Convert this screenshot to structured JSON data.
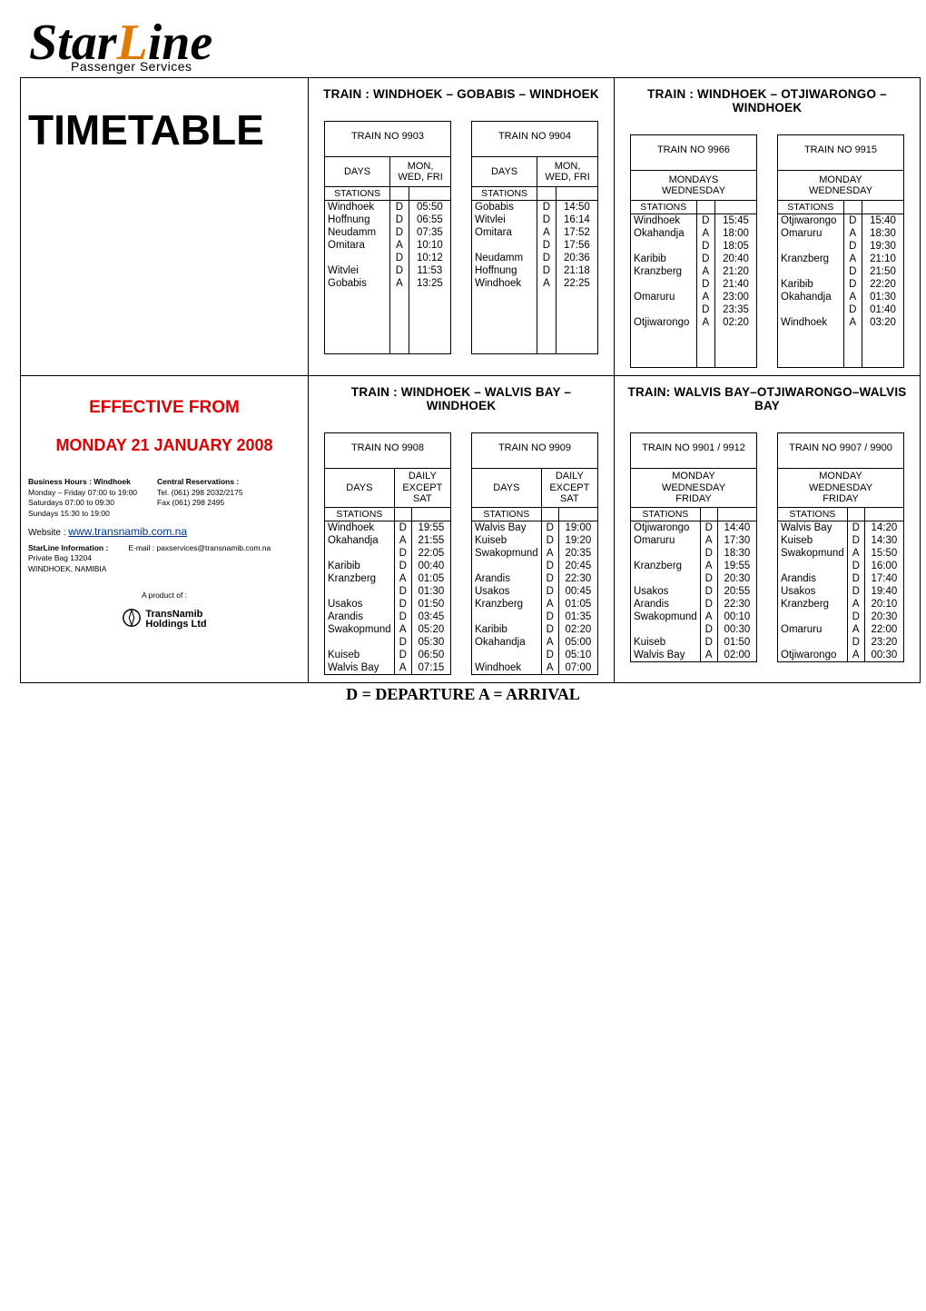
{
  "logo": {
    "word_star": "Star",
    "word_l": "L",
    "word_ine": "ine",
    "sub": "Passenger Services"
  },
  "timetable_heading": "TIMETABLE",
  "effective_label": "EFFECTIVE FROM",
  "effective_date": "MONDAY 21 JANUARY 2008",
  "contact": {
    "hours_title": "Business Hours : Windhoek",
    "hours_l1": "Monday – Friday   07:00 to 19:00",
    "hours_l2": "Saturdays          07:00 to 09:30",
    "hours_l3": "Sundays            15:30 to 19:00",
    "res_title": "Central Reservations :",
    "res_l1": "Tel. (061) 298 2032/2175",
    "res_l2": "Fax (061) 298 2495",
    "website_label": "Website :",
    "website_url": "www.transnamib.com.na",
    "info_title": "StarLine Information :",
    "info_addr1": "Private Bag 13204",
    "info_addr2": "WINDHOEK, NAMIBIA",
    "email_label": "E-mail : paxservices@transnamib.com.na",
    "product_of": "A product of :",
    "tn_line1": "TransNamib",
    "tn_line2": "Holdings Ltd"
  },
  "legend": "D = DEPARTURE    A = ARRIVAL",
  "routes": {
    "gobabis": {
      "title": "TRAIN :  WINDHOEK – GOBABIS – WINDHOEK",
      "t9903": {
        "train_no": "TRAIN NO 9903",
        "days_lbl": "DAYS",
        "days": "MON,\nWED, FRI",
        "stations_lbl": "STATIONS",
        "filler_rows": 5,
        "rows": [
          {
            "stn": "Windhoek",
            "da": "D",
            "tm": "05:50"
          },
          {
            "stn": "Hoffnung",
            "da": "D",
            "tm": "06:55"
          },
          {
            "stn": "Neudamm",
            "da": "D",
            "tm": "07:35"
          },
          {
            "stn": "Omitara",
            "da": "A",
            "tm": "10:10"
          },
          {
            "stn": "",
            "da": "D",
            "tm": "10:12"
          },
          {
            "stn": "Witvlei",
            "da": "D",
            "tm": "11:53"
          },
          {
            "stn": "Gobabis",
            "da": "A",
            "tm": "13:25"
          }
        ]
      },
      "t9904": {
        "train_no": "TRAIN NO 9904",
        "days_lbl": "DAYS",
        "days": "MON,\nWED, FRI",
        "stations_lbl": "STATIONS",
        "filler_rows": 5,
        "rows": [
          {
            "stn": "Gobabis",
            "da": "D",
            "tm": "14:50"
          },
          {
            "stn": "Witvlei",
            "da": "D",
            "tm": "16:14"
          },
          {
            "stn": "Omitara",
            "da": "A",
            "tm": "17:52"
          },
          {
            "stn": "",
            "da": "D",
            "tm": "17:56"
          },
          {
            "stn": "Neudamm",
            "da": "D",
            "tm": "20:36"
          },
          {
            "stn": "Hoffnung",
            "da": "D",
            "tm": "21:18"
          },
          {
            "stn": "Windhoek",
            "da": "A",
            "tm": "22:25"
          }
        ]
      }
    },
    "otji": {
      "title": "TRAIN : WINDHOEK – OTJIWARONGO – WINDHOEK",
      "t9966": {
        "train_no": "TRAIN NO 9966",
        "days_lbl": "MONDAYS\nWEDNESDAY",
        "days": "",
        "stations_lbl": "STATIONS",
        "filler_rows": 3,
        "rows": [
          {
            "stn": "Windhoek",
            "da": "D",
            "tm": "15:45"
          },
          {
            "stn": "Okahandja",
            "da": "A",
            "tm": "18:00"
          },
          {
            "stn": "",
            "da": "D",
            "tm": "18:05"
          },
          {
            "stn": "Karibib",
            "da": "D",
            "tm": "20:40"
          },
          {
            "stn": "Kranzberg",
            "da": "A",
            "tm": "21:20"
          },
          {
            "stn": "",
            "da": "D",
            "tm": "21:40"
          },
          {
            "stn": "Omaruru",
            "da": "A",
            "tm": "23:00"
          },
          {
            "stn": "",
            "da": "D",
            "tm": "23:35"
          },
          {
            "stn": "Otjiwarongo",
            "da": "A",
            "tm": "02:20"
          }
        ]
      },
      "t9915": {
        "train_no": "TRAIN NO 9915",
        "days_lbl": "MONDAY\nWEDNESDAY",
        "days": "",
        "stations_lbl": "STATIONS",
        "filler_rows": 3,
        "rows": [
          {
            "stn": "Otjiwarongo",
            "da": "D",
            "tm": "15:40"
          },
          {
            "stn": "Omaruru",
            "da": "A",
            "tm": "18:30"
          },
          {
            "stn": "",
            "da": "D",
            "tm": "19:30"
          },
          {
            "stn": "Kranzberg",
            "da": "A",
            "tm": "21:10"
          },
          {
            "stn": "",
            "da": "D",
            "tm": "21:50"
          },
          {
            "stn": "Karibib",
            "da": "D",
            "tm": "22:20"
          },
          {
            "stn": "Okahandja",
            "da": "A",
            "tm": "01:30"
          },
          {
            "stn": "",
            "da": "D",
            "tm": "01:40"
          },
          {
            "stn": "Windhoek",
            "da": "A",
            "tm": "03:20"
          }
        ]
      }
    },
    "walvis": {
      "title": "TRAIN :  WINDHOEK – WALVIS BAY – WINDHOEK",
      "t9908": {
        "train_no": "TRAIN NO 9908",
        "days_lbl": "DAYS",
        "days": "DAILY\nEXCEPT\nSAT",
        "stations_lbl": "STATIONS",
        "filler_rows": 0,
        "rows": [
          {
            "stn": "Windhoek",
            "da": "D",
            "tm": "19:55"
          },
          {
            "stn": "Okahandja",
            "da": "A",
            "tm": "21:55"
          },
          {
            "stn": "",
            "da": "D",
            "tm": "22:05"
          },
          {
            "stn": "Karibib",
            "da": "D",
            "tm": "00:40"
          },
          {
            "stn": "Kranzberg",
            "da": "A",
            "tm": "01:05"
          },
          {
            "stn": "",
            "da": "D",
            "tm": "01:30"
          },
          {
            "stn": "Usakos",
            "da": "D",
            "tm": "01:50"
          },
          {
            "stn": "Arandis",
            "da": "D",
            "tm": "03:45"
          },
          {
            "stn": "Swakopmund",
            "da": "A",
            "tm": "05:20"
          },
          {
            "stn": "",
            "da": "D",
            "tm": "05:30"
          },
          {
            "stn": "Kuiseb",
            "da": "D",
            "tm": "06:50"
          },
          {
            "stn": "Walvis Bay",
            "da": "A",
            "tm": "07:15"
          }
        ]
      },
      "t9909": {
        "train_no": "TRAIN NO 9909",
        "days_lbl": "DAYS",
        "days": "DAILY\nEXCEPT\nSAT",
        "stations_lbl": "STATIONS",
        "filler_rows": 0,
        "rows": [
          {
            "stn": "Walvis Bay",
            "da": "D",
            "tm": "19:00"
          },
          {
            "stn": "Kuiseb",
            "da": "D",
            "tm": "19:20"
          },
          {
            "stn": "Swakopmund",
            "da": "A",
            "tm": "20:35"
          },
          {
            "stn": "",
            "da": "D",
            "tm": "20:45"
          },
          {
            "stn": "Arandis",
            "da": "D",
            "tm": "22:30"
          },
          {
            "stn": "Usakos",
            "da": "D",
            "tm": "00:45"
          },
          {
            "stn": "Kranzberg",
            "da": "A",
            "tm": "01:05"
          },
          {
            "stn": "",
            "da": "D",
            "tm": "01:35"
          },
          {
            "stn": "Karibib",
            "da": "D",
            "tm": "02:20"
          },
          {
            "stn": "Okahandja",
            "da": "A",
            "tm": "05:00"
          },
          {
            "stn": "",
            "da": "D",
            "tm": "05:10"
          },
          {
            "stn": "Windhoek",
            "da": "A",
            "tm": "07:00"
          }
        ]
      }
    },
    "wb_otji": {
      "title": "TRAIN: WALVIS BAY–OTJIWARONGO–WALVIS BAY",
      "t9901": {
        "train_no": "TRAIN NO  9901 / 9912",
        "days_lbl": "MONDAY\nWEDNESDAY\nFRIDAY",
        "days": "",
        "stations_lbl": "STATIONS",
        "filler_rows": 0,
        "rows": [
          {
            "stn": "Otjiwarongo",
            "da": "D",
            "tm": "14:40"
          },
          {
            "stn": "Omaruru",
            "da": "A",
            "tm": "17:30"
          },
          {
            "stn": "",
            "da": "D",
            "tm": "18:30"
          },
          {
            "stn": "Kranzberg",
            "da": "A",
            "tm": "19:55"
          },
          {
            "stn": "",
            "da": "D",
            "tm": "20:30"
          },
          {
            "stn": "Usakos",
            "da": "D",
            "tm": "20:55"
          },
          {
            "stn": "Arandis",
            "da": "D",
            "tm": "22:30"
          },
          {
            "stn": "Swakopmund",
            "da": "A",
            "tm": "00:10"
          },
          {
            "stn": "",
            "da": "D",
            "tm": "00:30"
          },
          {
            "stn": "Kuiseb",
            "da": "D",
            "tm": "01:50"
          },
          {
            "stn": "Walvis Bay",
            "da": "A",
            "tm": "02:00"
          }
        ]
      },
      "t9907": {
        "train_no": "TRAIN NO 9907 / 9900",
        "days_lbl": "MONDAY\nWEDNESDAY\nFRIDAY",
        "days": "",
        "stations_lbl": "STATIONS",
        "filler_rows": 0,
        "rows": [
          {
            "stn": "Walvis Bay",
            "da": "D",
            "tm": "14:20"
          },
          {
            "stn": "Kuiseb",
            "da": "D",
            "tm": "14:30"
          },
          {
            "stn": "Swakopmund",
            "da": "A",
            "tm": "15:50"
          },
          {
            "stn": "",
            "da": "D",
            "tm": "16:00"
          },
          {
            "stn": "Arandis",
            "da": "D",
            "tm": "17:40"
          },
          {
            "stn": "Usakos",
            "da": "D",
            "tm": "19:40"
          },
          {
            "stn": "Kranzberg",
            "da": "A",
            "tm": "20:10"
          },
          {
            "stn": "",
            "da": "D",
            "tm": "20:30"
          },
          {
            "stn": "Omaruru",
            "da": "A",
            "tm": "22:00"
          },
          {
            "stn": "",
            "da": "D",
            "tm": "23:20"
          },
          {
            "stn": "Otjiwarongo",
            "da": "A",
            "tm": "00:30"
          }
        ]
      }
    }
  }
}
